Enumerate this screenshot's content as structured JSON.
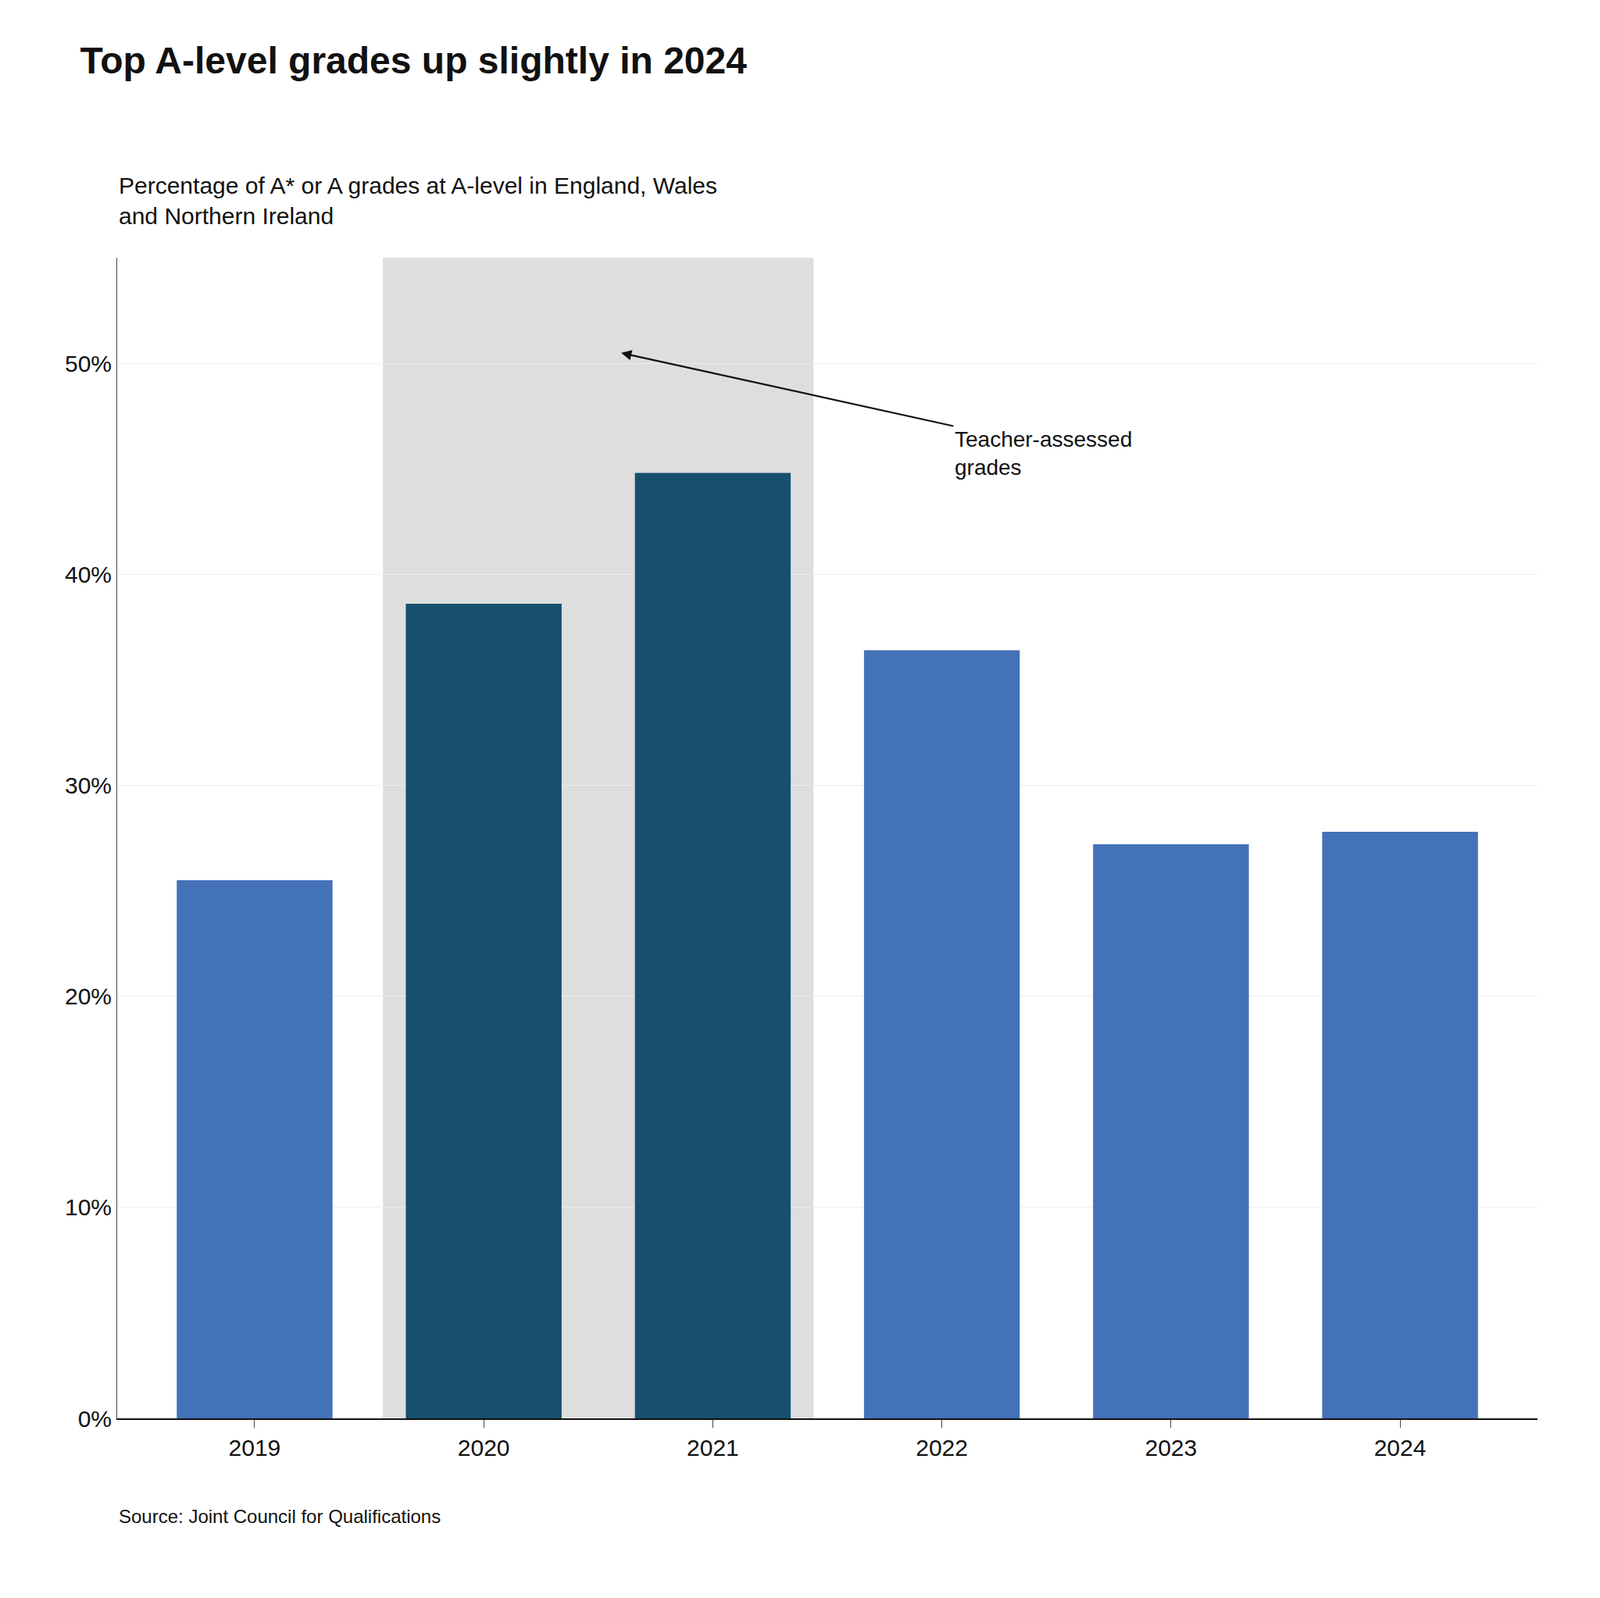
{
  "chart_data": {
    "type": "bar",
    "title": "Top A-level grades up slightly in 2024",
    "subtitle": "Percentage of A* or A grades at A-level in England, Wales\nand Northern Ireland",
    "categories": [
      "2019",
      "2020",
      "2021",
      "2022",
      "2023",
      "2024"
    ],
    "values": [
      25.5,
      38.6,
      44.8,
      36.4,
      27.2,
      27.8
    ],
    "colors": [
      "#4472b8",
      "#174f6e",
      "#174f6e",
      "#4472b8",
      "#4472b8",
      "#4472b8"
    ],
    "ylim": [
      0,
      55
    ],
    "yticks": [
      {
        "value": 0,
        "label": "0%"
      },
      {
        "value": 10,
        "label": "10%"
      },
      {
        "value": 20,
        "label": "20%"
      },
      {
        "value": 30,
        "label": "30%"
      },
      {
        "value": 40,
        "label": "40%"
      },
      {
        "value": 50,
        "label": "50%"
      }
    ],
    "grid": true,
    "annotations": [
      {
        "text": "Teacher-assessed\ngrades",
        "categories": [
          "2020",
          "2021"
        ]
      }
    ],
    "source": "Source: Joint Council for Qualifications"
  }
}
